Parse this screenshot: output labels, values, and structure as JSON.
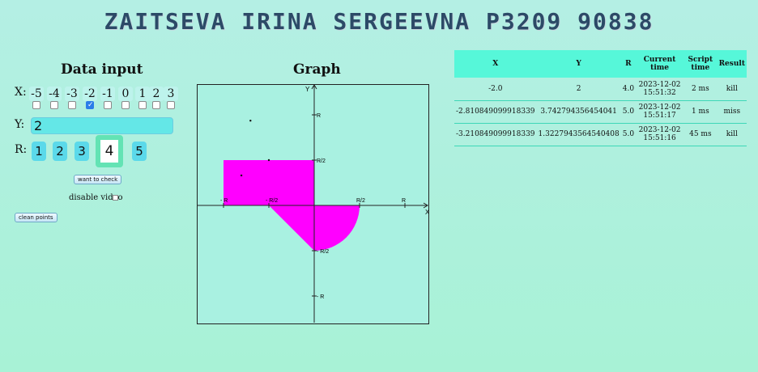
{
  "header": {
    "title": "ZAITSEVA IRINA SERGEEVNA P3209 90838"
  },
  "data_input": {
    "title": "Data input",
    "x_label": "X:",
    "x_options": [
      "-5",
      "-4",
      "-3",
      "-2",
      "-1",
      "0",
      "1",
      "2",
      "3"
    ],
    "x_checked": "-2",
    "y_label": "Y:",
    "y_value": "2",
    "r_label": "R:",
    "r_options": [
      "1",
      "2",
      "3",
      "4",
      "5"
    ],
    "r_selected": "4",
    "check_button": "want to check",
    "disable_video_label": "disable video",
    "clean_button": "clean points"
  },
  "graph": {
    "title": "Graph",
    "x_axis_label": "X",
    "y_axis_label": "Y",
    "x_ticks": [
      "- R",
      "- R/2",
      "R/2",
      "R"
    ],
    "y_ticks": [
      "R",
      "R/2",
      "- R/2",
      "- R"
    ],
    "area_color": "#ff00ff",
    "points": [
      {
        "x": -2.0,
        "y": 2.0,
        "r": 4.0
      },
      {
        "x": -2.810849099918339,
        "y": 3.742794356454041,
        "r": 5.0
      },
      {
        "x": -3.210849099918339,
        "y": 1.3227943564540408,
        "r": 5.0
      }
    ]
  },
  "results_table": {
    "columns": [
      "X",
      "Y",
      "R",
      "Current time",
      "Script time",
      "Result"
    ],
    "rows": [
      [
        "-2.0",
        "2",
        "4.0",
        "2023-12-02 15:51:32",
        "2 ms",
        "kill"
      ],
      [
        "-2.810849099918339",
        "3.742794356454041",
        "5.0",
        "2023-12-02 15:51:17",
        "1 ms",
        "miss"
      ],
      [
        "-3.210849099918339",
        "1.3227943564540408",
        "5.0",
        "2023-12-02 15:51:16",
        "45 ms",
        "kill"
      ]
    ]
  }
}
